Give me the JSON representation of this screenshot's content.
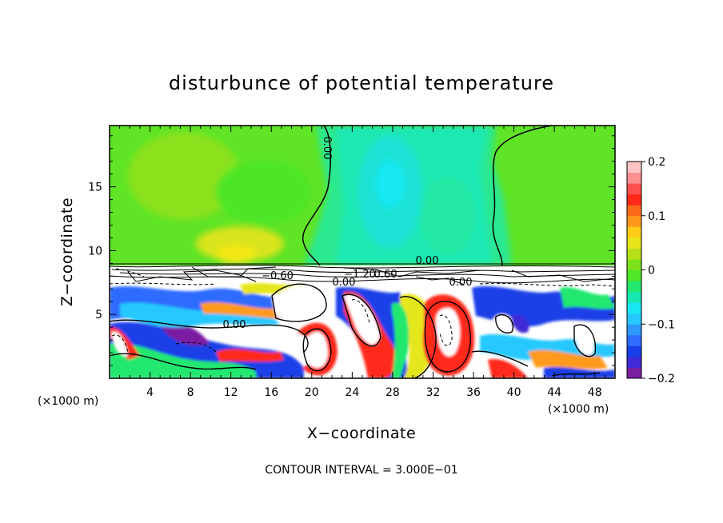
{
  "chart_data": {
    "type": "heatmap",
    "title": "disturbunce of potential temperature",
    "xlabel": "X−coordinate",
    "ylabel": "Z−coordinate",
    "x_unit": "(×1000 m)",
    "xlim": [
      0,
      50
    ],
    "ylim": [
      0,
      19.8
    ],
    "x_ticks": [
      "4",
      "8",
      "12",
      "16",
      "20",
      "24",
      "28",
      "32",
      "36",
      "40",
      "44",
      "48"
    ],
    "y_ticks": [
      "5",
      "10",
      "15"
    ],
    "colorbar": {
      "range": [
        -0.2,
        0.2
      ],
      "tick_labels": [
        "0.2",
        "0.1",
        "0",
        "−0.1",
        "−0.2"
      ],
      "colors": [
        "#7b1fa2",
        "#3f2bd6",
        "#1a3fe8",
        "#2f6cff",
        "#2f98ff",
        "#27c8ff",
        "#18e6f0",
        "#18e8b0",
        "#22e870",
        "#4ee626",
        "#7be21a",
        "#b8e01a",
        "#e6e61a",
        "#ffcc1a",
        "#ff9a1a",
        "#ff6a1a",
        "#ff2a1a",
        "#ff5050",
        "#ff9090",
        "#ffc4c4"
      ]
    },
    "contour_labels": [
      "0.00",
      "0.00",
      "0.00",
      "0.00",
      "−0.60",
      "−1.20",
      "0.60",
      "0.00"
    ],
    "note": "CONTOUR INTERVAL = 3.000E−01"
  }
}
